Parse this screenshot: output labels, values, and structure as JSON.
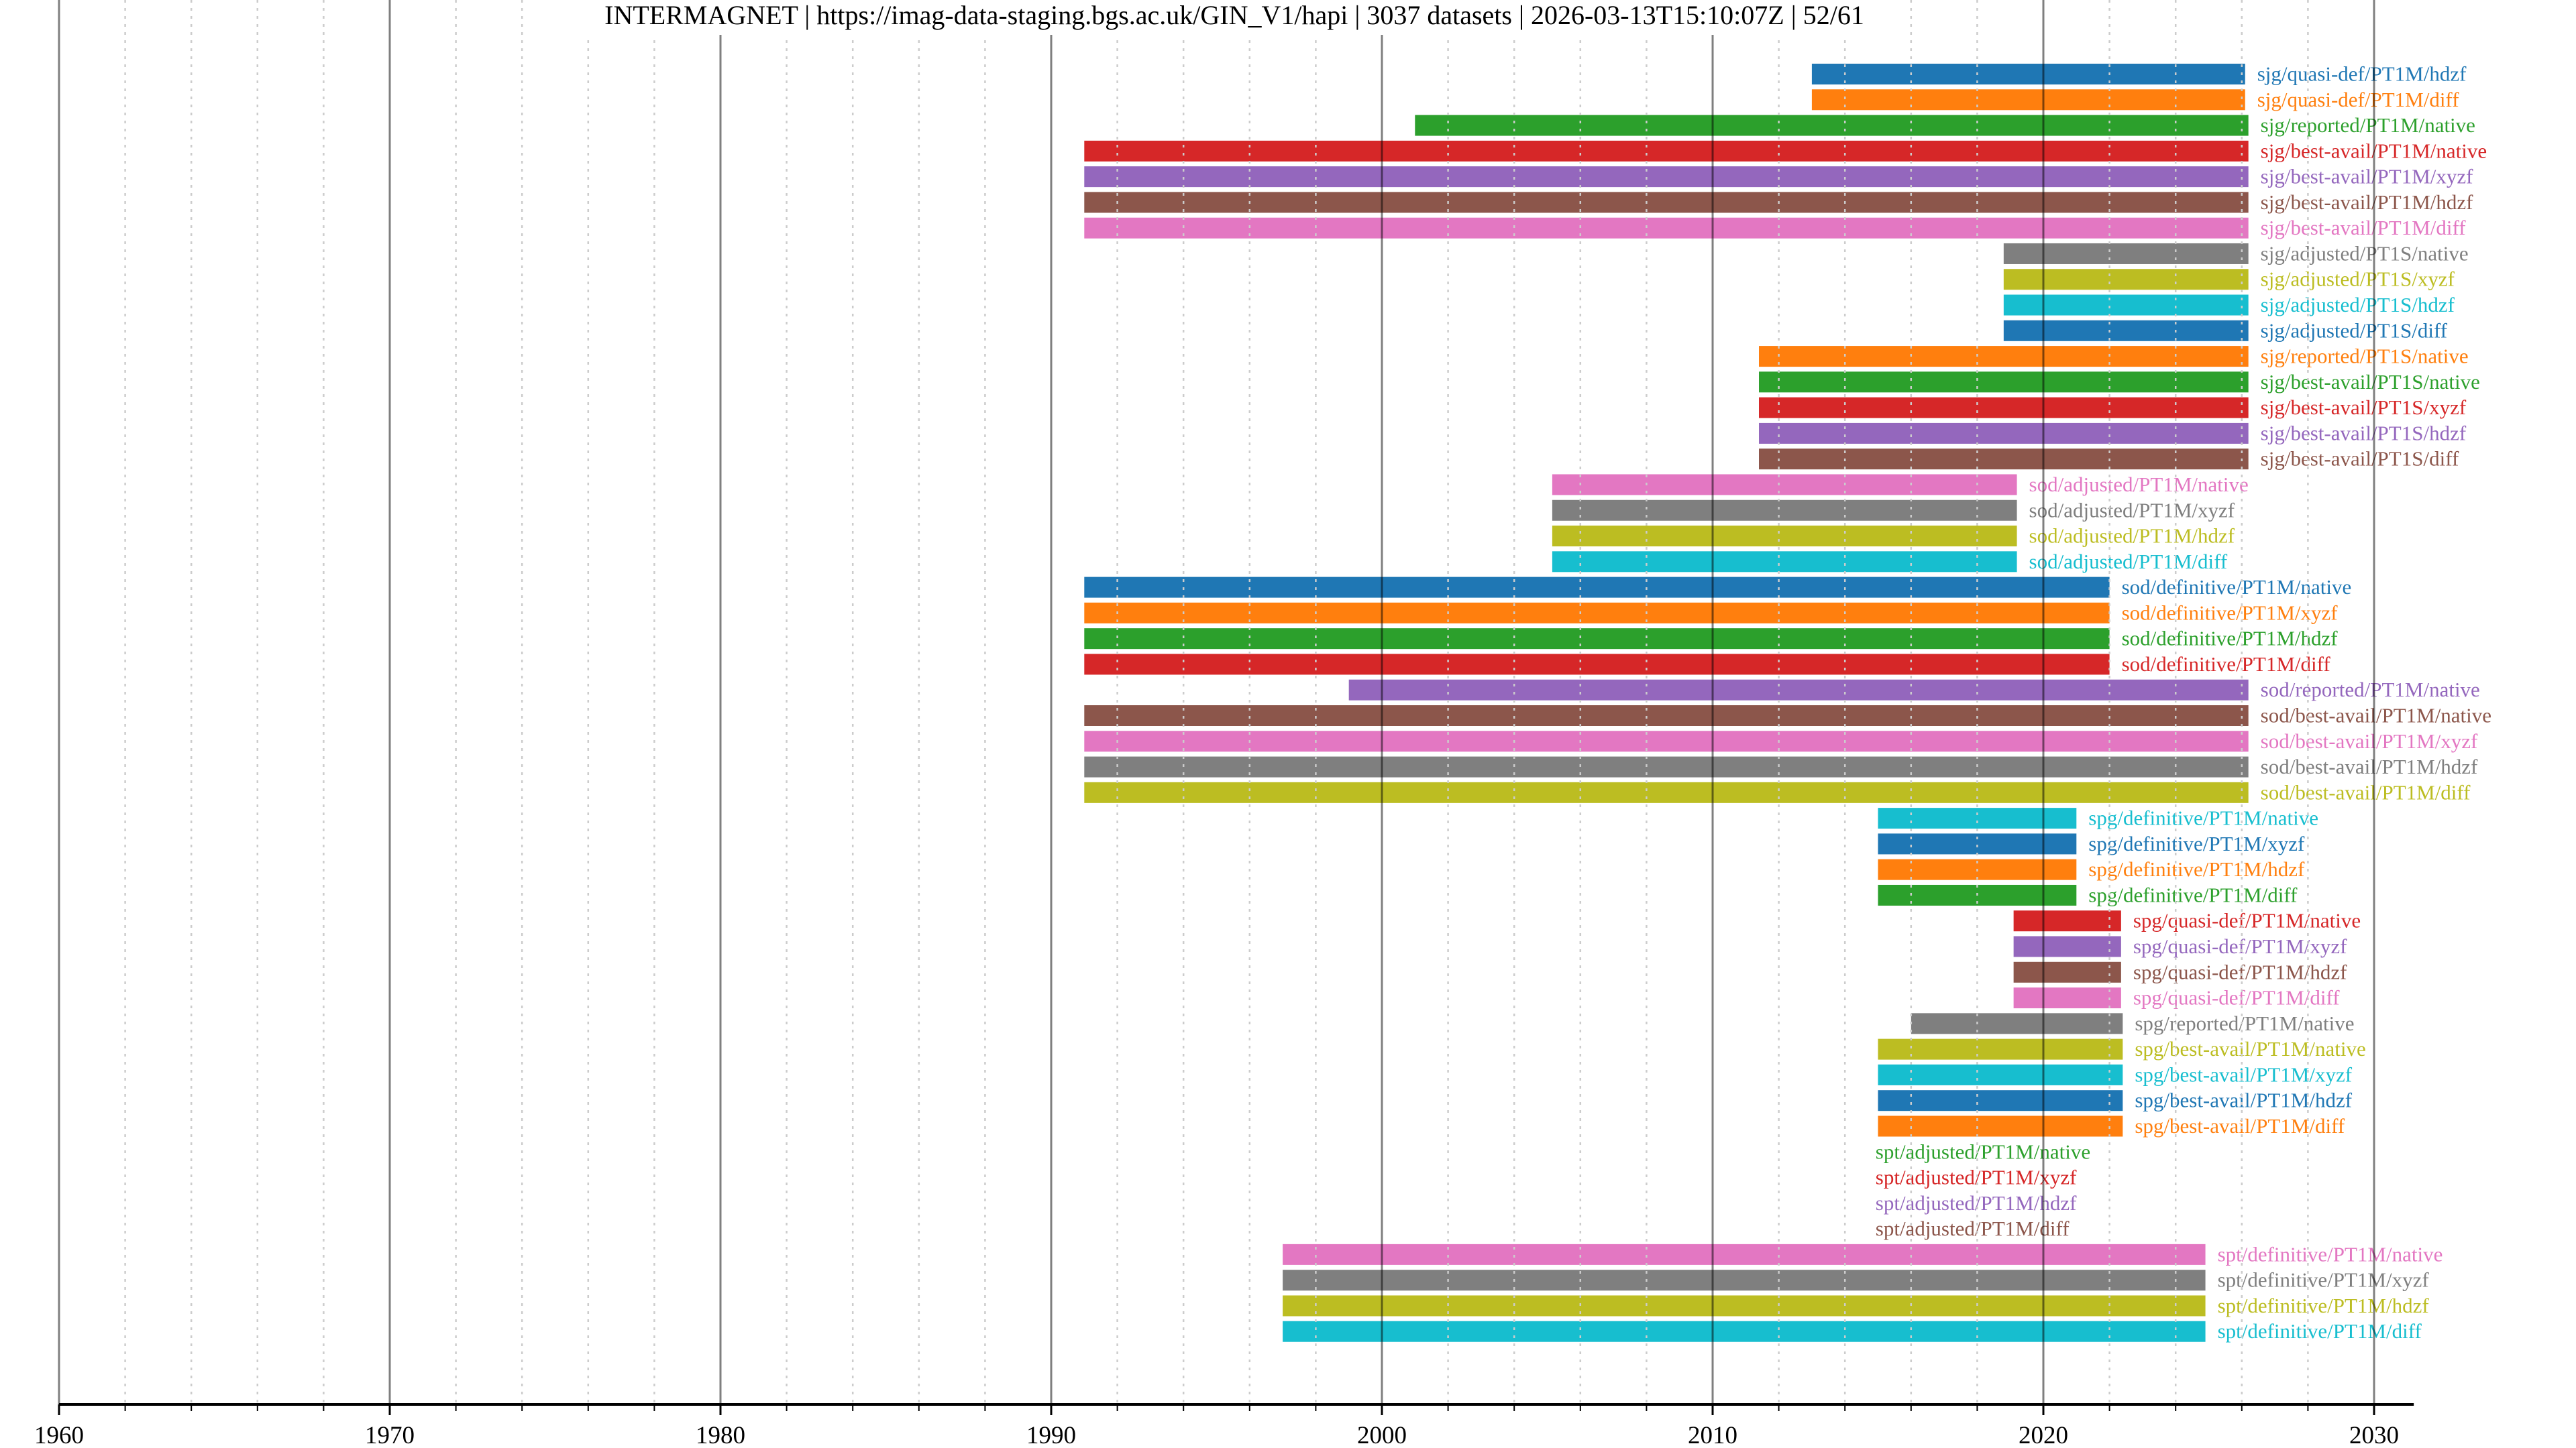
{
  "chart_data": {
    "type": "gantt",
    "title": "INTERMAGNET | https://imag-data-staging.bgs.ac.uk/GIN_V1/hapi | 3037 datasets | 2026-03-13T15:10:07Z | 52/61",
    "xlabel": "",
    "ylabel": "",
    "xlim": [
      1960,
      2031.2
    ],
    "grid": true,
    "x_ticks": [
      "1960",
      "1970",
      "1980",
      "1990",
      "2000",
      "2010",
      "2020",
      "2030"
    ],
    "x_tick_values": [
      1960,
      1970,
      1980,
      1990,
      2000,
      2010,
      2020,
      2030
    ],
    "minor_tick_step": 2,
    "palette": [
      "#1f77b4",
      "#ff7f0e",
      "#2ca02c",
      "#d62728",
      "#9467bd",
      "#8c564b",
      "#e377c2",
      "#7f7f7f",
      "#bcbd22",
      "#17becf"
    ],
    "series": [
      {
        "name": "sjg/quasi-def/PT1M/hdzf",
        "start": 2013.0,
        "end": 2026.1,
        "color": "#1f77b4"
      },
      {
        "name": "sjg/quasi-def/PT1M/diff",
        "start": 2013.0,
        "end": 2026.1,
        "color": "#ff7f0e"
      },
      {
        "name": "sjg/reported/PT1M/native",
        "start": 2001.0,
        "end": 2026.2,
        "color": "#2ca02c"
      },
      {
        "name": "sjg/best-avail/PT1M/native",
        "start": 1991.0,
        "end": 2026.2,
        "color": "#d62728"
      },
      {
        "name": "sjg/best-avail/PT1M/xyzf",
        "start": 1991.0,
        "end": 2026.2,
        "color": "#9467bd"
      },
      {
        "name": "sjg/best-avail/PT1M/hdzf",
        "start": 1991.0,
        "end": 2026.2,
        "color": "#8c564b"
      },
      {
        "name": "sjg/best-avail/PT1M/diff",
        "start": 1991.0,
        "end": 2026.2,
        "color": "#e377c2"
      },
      {
        "name": "sjg/adjusted/PT1S/native",
        "start": 2018.8,
        "end": 2026.2,
        "color": "#7f7f7f"
      },
      {
        "name": "sjg/adjusted/PT1S/xyzf",
        "start": 2018.8,
        "end": 2026.2,
        "color": "#bcbd22"
      },
      {
        "name": "sjg/adjusted/PT1S/hdzf",
        "start": 2018.8,
        "end": 2026.2,
        "color": "#17becf"
      },
      {
        "name": "sjg/adjusted/PT1S/diff",
        "start": 2018.8,
        "end": 2026.2,
        "color": "#1f77b4"
      },
      {
        "name": "sjg/reported/PT1S/native",
        "start": 2011.4,
        "end": 2026.2,
        "color": "#ff7f0e"
      },
      {
        "name": "sjg/best-avail/PT1S/native",
        "start": 2011.4,
        "end": 2026.2,
        "color": "#2ca02c"
      },
      {
        "name": "sjg/best-avail/PT1S/xyzf",
        "start": 2011.4,
        "end": 2026.2,
        "color": "#d62728"
      },
      {
        "name": "sjg/best-avail/PT1S/hdzf",
        "start": 2011.4,
        "end": 2026.2,
        "color": "#9467bd"
      },
      {
        "name": "sjg/best-avail/PT1S/diff",
        "start": 2011.4,
        "end": 2026.2,
        "color": "#8c564b"
      },
      {
        "name": "sod/adjusted/PT1M/native",
        "start": 2005.15,
        "end": 2019.2,
        "color": "#e377c2"
      },
      {
        "name": "sod/adjusted/PT1M/xyzf",
        "start": 2005.15,
        "end": 2019.2,
        "color": "#7f7f7f"
      },
      {
        "name": "sod/adjusted/PT1M/hdzf",
        "start": 2005.15,
        "end": 2019.2,
        "color": "#bcbd22"
      },
      {
        "name": "sod/adjusted/PT1M/diff",
        "start": 2005.15,
        "end": 2019.2,
        "color": "#17becf"
      },
      {
        "name": "sod/definitive/PT1M/native",
        "start": 1991.0,
        "end": 2022.0,
        "color": "#1f77b4"
      },
      {
        "name": "sod/definitive/PT1M/xyzf",
        "start": 1991.0,
        "end": 2022.0,
        "color": "#ff7f0e"
      },
      {
        "name": "sod/definitive/PT1M/hdzf",
        "start": 1991.0,
        "end": 2022.0,
        "color": "#2ca02c"
      },
      {
        "name": "sod/definitive/PT1M/diff",
        "start": 1991.0,
        "end": 2022.0,
        "color": "#d62728"
      },
      {
        "name": "sod/reported/PT1M/native",
        "start": 1999.0,
        "end": 2026.2,
        "color": "#9467bd"
      },
      {
        "name": "sod/best-avail/PT1M/native",
        "start": 1991.0,
        "end": 2026.2,
        "color": "#8c564b"
      },
      {
        "name": "sod/best-avail/PT1M/xyzf",
        "start": 1991.0,
        "end": 2026.2,
        "color": "#e377c2"
      },
      {
        "name": "sod/best-avail/PT1M/hdzf",
        "start": 1991.0,
        "end": 2026.2,
        "color": "#7f7f7f"
      },
      {
        "name": "sod/best-avail/PT1M/diff",
        "start": 1991.0,
        "end": 2026.2,
        "color": "#bcbd22"
      },
      {
        "name": "spg/definitive/PT1M/native",
        "start": 2015.0,
        "end": 2021.0,
        "color": "#17becf"
      },
      {
        "name": "spg/definitive/PT1M/xyzf",
        "start": 2015.0,
        "end": 2021.0,
        "color": "#1f77b4"
      },
      {
        "name": "spg/definitive/PT1M/hdzf",
        "start": 2015.0,
        "end": 2021.0,
        "color": "#ff7f0e"
      },
      {
        "name": "spg/definitive/PT1M/diff",
        "start": 2015.0,
        "end": 2021.0,
        "color": "#2ca02c"
      },
      {
        "name": "spg/quasi-def/PT1M/native",
        "start": 2019.1,
        "end": 2022.35,
        "color": "#d62728"
      },
      {
        "name": "spg/quasi-def/PT1M/xyzf",
        "start": 2019.1,
        "end": 2022.35,
        "color": "#9467bd"
      },
      {
        "name": "spg/quasi-def/PT1M/hdzf",
        "start": 2019.1,
        "end": 2022.35,
        "color": "#8c564b"
      },
      {
        "name": "spg/quasi-def/PT1M/diff",
        "start": 2019.1,
        "end": 2022.35,
        "color": "#e377c2"
      },
      {
        "name": "spg/reported/PT1M/native",
        "start": 2016.0,
        "end": 2022.4,
        "color": "#7f7f7f"
      },
      {
        "name": "spg/best-avail/PT1M/native",
        "start": 2015.0,
        "end": 2022.4,
        "color": "#bcbd22"
      },
      {
        "name": "spg/best-avail/PT1M/xyzf",
        "start": 2015.0,
        "end": 2022.4,
        "color": "#17becf"
      },
      {
        "name": "spg/best-avail/PT1M/hdzf",
        "start": 2015.0,
        "end": 2022.4,
        "color": "#1f77b4"
      },
      {
        "name": "spg/best-avail/PT1M/diff",
        "start": 2015.0,
        "end": 2022.4,
        "color": "#ff7f0e"
      },
      {
        "name": "spt/adjusted/PT1M/native",
        "start": null,
        "end": null,
        "label_at": 2014.6,
        "color": "#2ca02c"
      },
      {
        "name": "spt/adjusted/PT1M/xyzf",
        "start": null,
        "end": null,
        "label_at": 2014.6,
        "color": "#d62728"
      },
      {
        "name": "spt/adjusted/PT1M/hdzf",
        "start": null,
        "end": null,
        "label_at": 2014.6,
        "color": "#9467bd"
      },
      {
        "name": "spt/adjusted/PT1M/diff",
        "start": null,
        "end": null,
        "label_at": 2014.6,
        "color": "#8c564b"
      },
      {
        "name": "spt/definitive/PT1M/native",
        "start": 1997.0,
        "end": 2024.9,
        "color": "#e377c2"
      },
      {
        "name": "spt/definitive/PT1M/xyzf",
        "start": 1997.0,
        "end": 2024.9,
        "color": "#7f7f7f"
      },
      {
        "name": "spt/definitive/PT1M/hdzf",
        "start": 1997.0,
        "end": 2024.9,
        "color": "#bcbd22"
      },
      {
        "name": "spt/definitive/PT1M/diff",
        "start": 1997.0,
        "end": 2024.9,
        "color": "#17becf"
      }
    ]
  }
}
